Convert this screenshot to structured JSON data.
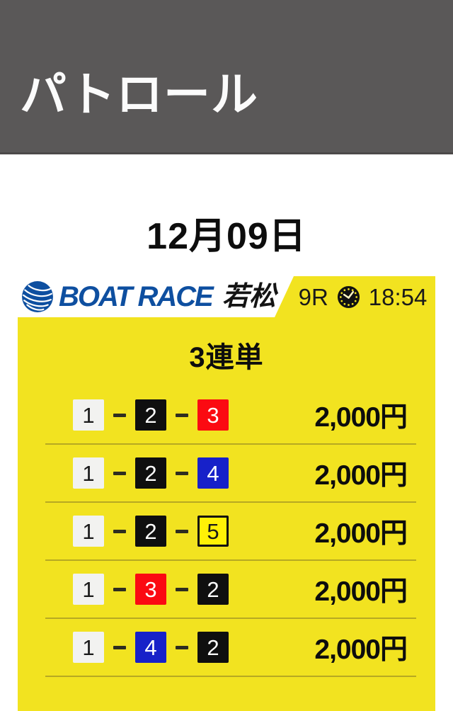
{
  "header": {
    "title": "パトロール"
  },
  "date": "12月09日",
  "ticket": {
    "brand": {
      "name": "BOAT RACE",
      "venue": "若松",
      "blue": "#0E4FA0"
    },
    "race": {
      "number": "9R",
      "time": "18:54",
      "clock_icon": "clock-icon"
    },
    "bet_type": "3連単",
    "rows": [
      {
        "combo": [
          1,
          2,
          3
        ],
        "amount": "2,000円"
      },
      {
        "combo": [
          1,
          2,
          4
        ],
        "amount": "2,000円"
      },
      {
        "combo": [
          1,
          2,
          5
        ],
        "amount": "2,000円"
      },
      {
        "combo": [
          1,
          3,
          2
        ],
        "amount": "2,000円"
      },
      {
        "combo": [
          1,
          4,
          2
        ],
        "amount": "2,000円"
      }
    ],
    "colors": {
      "ticket_yellow": "#F2E320",
      "divider": "#B7A922",
      "boat_colors": {
        "1": {
          "bg": "#F2F2F0",
          "fg": "#1A1A1A",
          "border": "none"
        },
        "2": {
          "bg": "#0F0F0F",
          "fg": "#FFFFFF",
          "border": "none"
        },
        "3": {
          "bg": "#FB0A12",
          "fg": "#FFFFFF",
          "border": "none"
        },
        "4": {
          "bg": "#1721C9",
          "fg": "#FFFFFF",
          "border": "none"
        },
        "5": {
          "bg": "#FFF106",
          "fg": "#1A1A1A",
          "border": "#101010"
        }
      }
    }
  }
}
